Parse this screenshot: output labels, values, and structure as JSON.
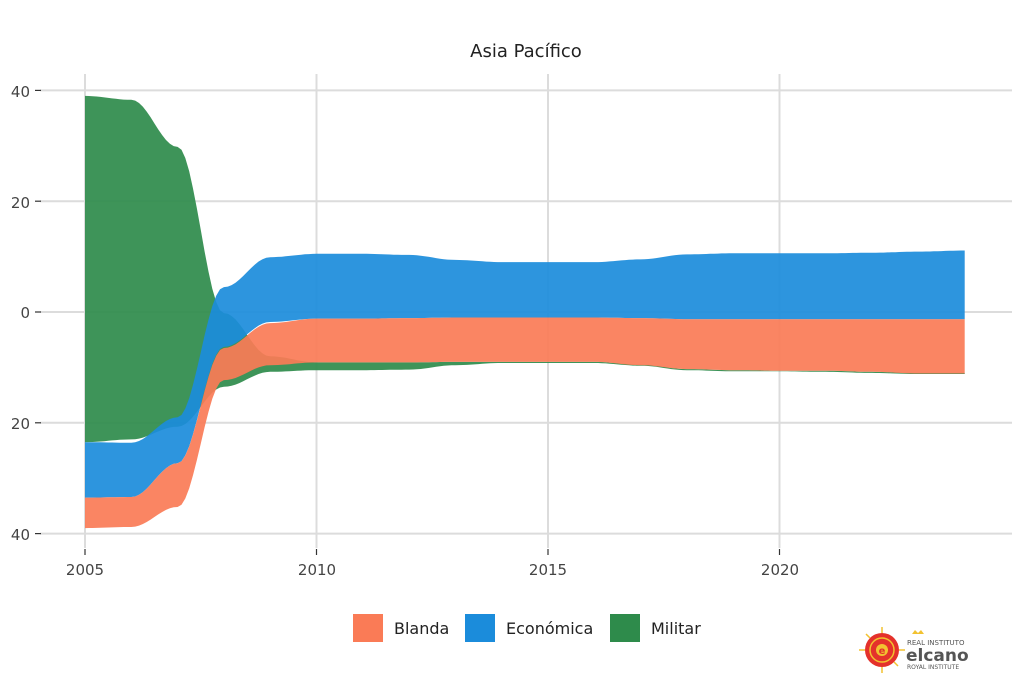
{
  "chart_data": {
    "type": "area",
    "subtype": "streamgraph",
    "title": "Asia Pacífico",
    "xlabel": "",
    "ylabel": "",
    "xlim": [
      2005,
      2024
    ],
    "ylim": [
      -40,
      40
    ],
    "x_ticks": [
      2005,
      2010,
      2015,
      2020
    ],
    "x_tick_labels": [
      "2005",
      "2010",
      "2015",
      "2020"
    ],
    "y_ticks": [
      40,
      20,
      0,
      -20,
      -40
    ],
    "y_tick_labels": [
      "40",
      "20",
      "0",
      "20",
      "40"
    ],
    "grid": true,
    "legend_position": "bottom",
    "x": [
      2005,
      2006,
      2007,
      2008,
      2009,
      2010,
      2011,
      2012,
      2013,
      2014,
      2015,
      2016,
      2017,
      2018,
      2019,
      2020,
      2021,
      2022,
      2023,
      2024
    ],
    "series": [
      {
        "name": "Militar",
        "color": "#2E8B4B",
        "lower": [
          -23.5,
          -23,
          -20.7,
          -13.5,
          -10.8,
          -10.5,
          -10.5,
          -10.4,
          -9.6,
          -9.2,
          -9.2,
          -9.2,
          -9.7,
          -10.5,
          -10.7,
          -10.7,
          -10.8,
          -11,
          -11.2,
          -11.2
        ],
        "upper": [
          39,
          38.3,
          29.8,
          -0.2,
          -8,
          -9.1,
          -9.1,
          -9.1,
          -9,
          -9,
          -9,
          -9,
          -9.5,
          -10.3,
          -10.5,
          -10.6,
          -10.6,
          -10.8,
          -11,
          -11
        ]
      },
      {
        "name": "Económica",
        "color": "#1B8CDB",
        "lower": [
          -33.5,
          -33.4,
          -27.3,
          -6.3,
          -1.8,
          -1.2,
          -1.2,
          -1.1,
          -1,
          -1,
          -1,
          -1,
          -1.1,
          -1.3,
          -1.3,
          -1.3,
          -1.3,
          -1.3,
          -1.3,
          -1.3
        ],
        "upper": [
          -23.5,
          -23.6,
          -19,
          4.5,
          9.9,
          10.5,
          10.5,
          10.3,
          9.4,
          9,
          9,
          9,
          9.5,
          10.4,
          10.6,
          10.6,
          10.6,
          10.7,
          10.9,
          11.1
        ]
      },
      {
        "name": "Blanda",
        "color": "#FA7B56",
        "lower": [
          -39,
          -38.8,
          -35.2,
          -12.3,
          -9.6,
          -9.1,
          -9.1,
          -9.1,
          -9,
          -9,
          -9,
          -9,
          -9.6,
          -10.3,
          -10.5,
          -10.6,
          -10.6,
          -10.8,
          -11.1,
          -11.1
        ],
        "upper": [
          -33.5,
          -33.4,
          -27.3,
          -6.5,
          -2,
          -1.2,
          -1.2,
          -1.1,
          -1,
          -1,
          -1,
          -1,
          -1.1,
          -1.3,
          -1.3,
          -1.3,
          -1.3,
          -1.3,
          -1.3,
          -1.3
        ]
      }
    ],
    "legend": [
      {
        "label": "Blanda",
        "color": "#FA7B56"
      },
      {
        "label": "Económica",
        "color": "#1B8CDB"
      },
      {
        "label": "Militar",
        "color": "#2E8B4B"
      }
    ]
  },
  "logo": {
    "line1": "REAL INSTITUTO",
    "line2": "elcano",
    "line3": "ROYAL INSTITUTE"
  }
}
